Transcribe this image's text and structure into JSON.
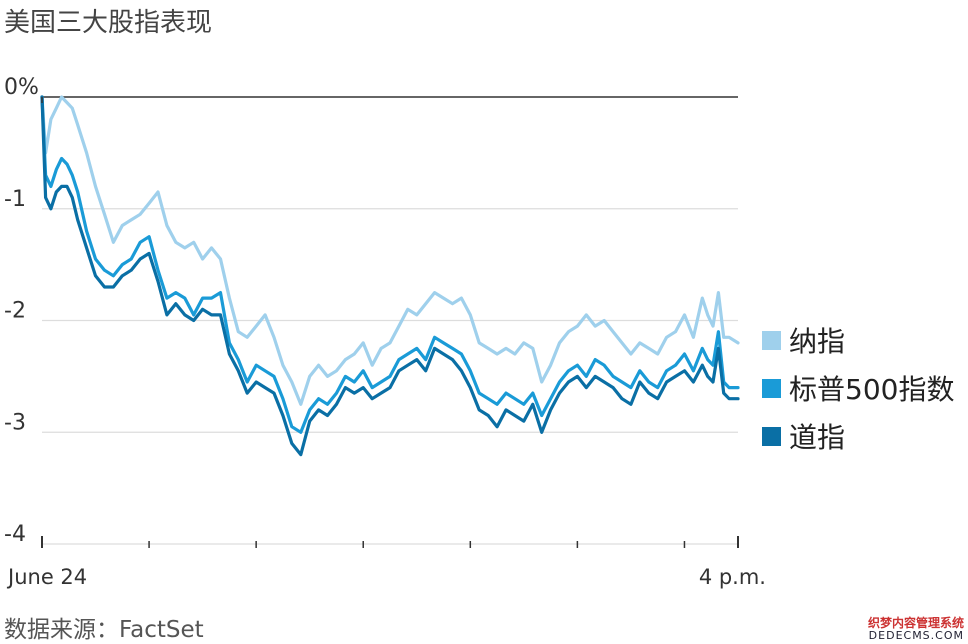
{
  "title": "美国三大股指表现",
  "source": "数据来源：FactSet",
  "watermark": {
    "line1": "织梦内容管理系统",
    "line2": "DEDECMS.COM"
  },
  "chart_data": {
    "type": "line",
    "title": "美国三大股指表现",
    "xlabel": "",
    "ylabel": "",
    "ylim": [
      -4,
      0
    ],
    "yticks": [
      0,
      -1,
      -2,
      -3,
      -4
    ],
    "ytick_labels": [
      "0%",
      "-1",
      "-2",
      "-3",
      "-4"
    ],
    "xlim": [
      0,
      390
    ],
    "xtick_positions": [
      0,
      60,
      120,
      180,
      240,
      300,
      360,
      390
    ],
    "xtick_labels": [
      {
        "x": 0,
        "label": "June 24"
      },
      {
        "x": 390,
        "label": "4 p.m."
      }
    ],
    "grid": true,
    "legend_position": "right",
    "colors": {
      "axis": "#333333",
      "grid": "#dddddd",
      "zero_line": "#333333"
    },
    "series": [
      {
        "name": "纳指",
        "color": "#9fd0ec",
        "x": [
          0,
          2,
          5,
          8,
          11,
          14,
          17,
          20,
          25,
          30,
          35,
          40,
          45,
          50,
          55,
          60,
          65,
          70,
          75,
          80,
          85,
          90,
          95,
          100,
          105,
          110,
          115,
          120,
          125,
          130,
          135,
          140,
          145,
          150,
          155,
          160,
          165,
          170,
          175,
          180,
          185,
          190,
          195,
          200,
          205,
          210,
          215,
          220,
          225,
          230,
          235,
          240,
          245,
          250,
          255,
          260,
          265,
          270,
          275,
          280,
          285,
          290,
          295,
          300,
          305,
          310,
          315,
          320,
          325,
          330,
          335,
          340,
          345,
          350,
          355,
          360,
          365,
          370,
          373,
          376,
          379,
          382,
          385,
          390
        ],
        "y": [
          0.0,
          -0.5,
          -0.2,
          -0.1,
          0.0,
          -0.05,
          -0.1,
          -0.25,
          -0.5,
          -0.8,
          -1.05,
          -1.3,
          -1.15,
          -1.1,
          -1.05,
          -0.95,
          -0.85,
          -1.15,
          -1.3,
          -1.35,
          -1.3,
          -1.45,
          -1.35,
          -1.45,
          -1.8,
          -2.1,
          -2.15,
          -2.05,
          -1.95,
          -2.15,
          -2.4,
          -2.55,
          -2.75,
          -2.5,
          -2.4,
          -2.5,
          -2.45,
          -2.35,
          -2.3,
          -2.2,
          -2.4,
          -2.25,
          -2.2,
          -2.05,
          -1.9,
          -1.95,
          -1.85,
          -1.75,
          -1.8,
          -1.85,
          -1.8,
          -1.95,
          -2.2,
          -2.25,
          -2.3,
          -2.25,
          -2.3,
          -2.2,
          -2.25,
          -2.55,
          -2.4,
          -2.2,
          -2.1,
          -2.05,
          -1.95,
          -2.05,
          -2.0,
          -2.1,
          -2.2,
          -2.3,
          -2.2,
          -2.25,
          -2.3,
          -2.15,
          -2.1,
          -1.95,
          -2.15,
          -1.8,
          -1.95,
          -2.05,
          -1.75,
          -2.15,
          -2.15,
          -2.2
        ]
      },
      {
        "name": "标普500指数",
        "color": "#1a9bd7",
        "x": [
          0,
          2,
          5,
          8,
          11,
          14,
          17,
          20,
          25,
          30,
          35,
          40,
          45,
          50,
          55,
          60,
          65,
          70,
          75,
          80,
          85,
          90,
          95,
          100,
          105,
          110,
          115,
          120,
          125,
          130,
          135,
          140,
          145,
          150,
          155,
          160,
          165,
          170,
          175,
          180,
          185,
          190,
          195,
          200,
          205,
          210,
          215,
          220,
          225,
          230,
          235,
          240,
          245,
          250,
          255,
          260,
          265,
          270,
          275,
          280,
          285,
          290,
          295,
          300,
          305,
          310,
          315,
          320,
          325,
          330,
          335,
          340,
          345,
          350,
          355,
          360,
          365,
          370,
          373,
          376,
          379,
          382,
          385,
          390
        ],
        "y": [
          0.0,
          -0.7,
          -0.8,
          -0.65,
          -0.55,
          -0.6,
          -0.7,
          -0.85,
          -1.2,
          -1.45,
          -1.55,
          -1.6,
          -1.5,
          -1.45,
          -1.3,
          -1.25,
          -1.55,
          -1.8,
          -1.75,
          -1.8,
          -1.95,
          -1.8,
          -1.8,
          -1.75,
          -2.2,
          -2.35,
          -2.55,
          -2.4,
          -2.45,
          -2.5,
          -2.7,
          -2.95,
          -3.0,
          -2.8,
          -2.7,
          -2.75,
          -2.65,
          -2.5,
          -2.55,
          -2.45,
          -2.6,
          -2.55,
          -2.5,
          -2.35,
          -2.3,
          -2.25,
          -2.35,
          -2.15,
          -2.2,
          -2.25,
          -2.3,
          -2.45,
          -2.65,
          -2.7,
          -2.75,
          -2.65,
          -2.7,
          -2.75,
          -2.65,
          -2.85,
          -2.7,
          -2.55,
          -2.45,
          -2.4,
          -2.5,
          -2.35,
          -2.4,
          -2.5,
          -2.55,
          -2.6,
          -2.45,
          -2.55,
          -2.6,
          -2.45,
          -2.4,
          -2.3,
          -2.45,
          -2.25,
          -2.35,
          -2.4,
          -2.1,
          -2.55,
          -2.6,
          -2.6
        ]
      },
      {
        "name": "道指",
        "color": "#0a6fa5",
        "x": [
          0,
          2,
          5,
          8,
          11,
          14,
          17,
          20,
          25,
          30,
          35,
          40,
          45,
          50,
          55,
          60,
          65,
          70,
          75,
          80,
          85,
          90,
          95,
          100,
          105,
          110,
          115,
          120,
          125,
          130,
          135,
          140,
          145,
          150,
          155,
          160,
          165,
          170,
          175,
          180,
          185,
          190,
          195,
          200,
          205,
          210,
          215,
          220,
          225,
          230,
          235,
          240,
          245,
          250,
          255,
          260,
          265,
          270,
          275,
          280,
          285,
          290,
          295,
          300,
          305,
          310,
          315,
          320,
          325,
          330,
          335,
          340,
          345,
          350,
          355,
          360,
          365,
          370,
          373,
          376,
          379,
          382,
          385,
          390
        ],
        "y": [
          0.0,
          -0.9,
          -1.0,
          -0.85,
          -0.8,
          -0.8,
          -0.9,
          -1.1,
          -1.35,
          -1.6,
          -1.7,
          -1.7,
          -1.6,
          -1.55,
          -1.45,
          -1.4,
          -1.65,
          -1.95,
          -1.85,
          -1.95,
          -2.0,
          -1.9,
          -1.95,
          -1.95,
          -2.3,
          -2.45,
          -2.65,
          -2.55,
          -2.6,
          -2.65,
          -2.85,
          -3.1,
          -3.2,
          -2.9,
          -2.8,
          -2.85,
          -2.75,
          -2.6,
          -2.65,
          -2.6,
          -2.7,
          -2.65,
          -2.6,
          -2.45,
          -2.4,
          -2.35,
          -2.45,
          -2.25,
          -2.3,
          -2.35,
          -2.45,
          -2.6,
          -2.8,
          -2.85,
          -2.95,
          -2.8,
          -2.85,
          -2.9,
          -2.75,
          -3.0,
          -2.8,
          -2.65,
          -2.55,
          -2.5,
          -2.6,
          -2.5,
          -2.55,
          -2.6,
          -2.7,
          -2.75,
          -2.55,
          -2.65,
          -2.7,
          -2.55,
          -2.5,
          -2.45,
          -2.55,
          -2.4,
          -2.5,
          -2.55,
          -2.25,
          -2.65,
          -2.7,
          -2.7
        ]
      }
    ]
  }
}
